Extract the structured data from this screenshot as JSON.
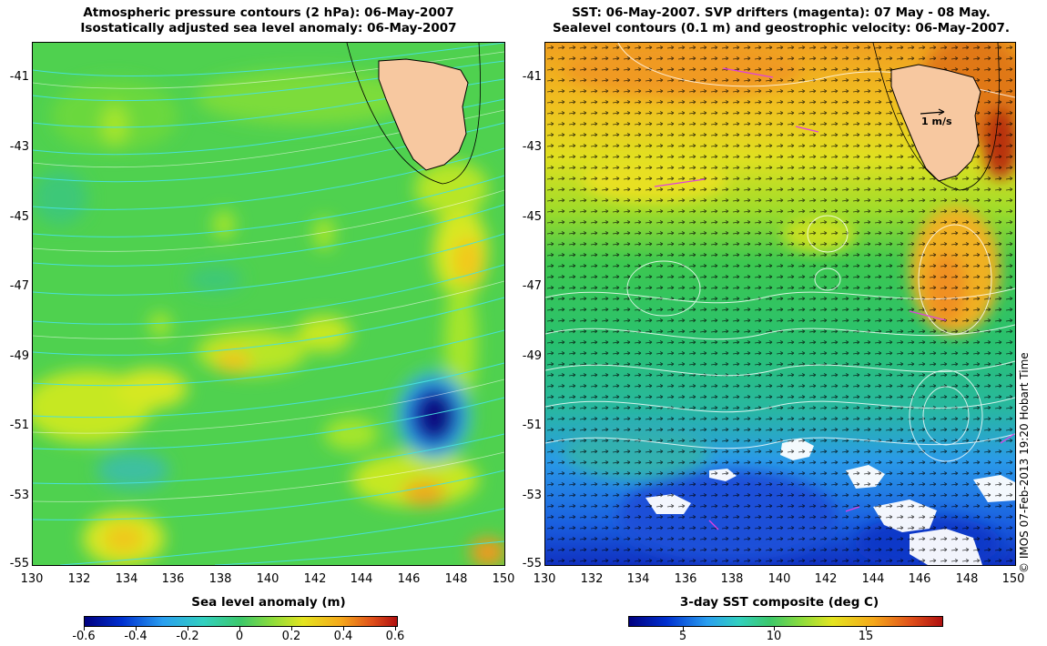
{
  "left_panel": {
    "title_line1": "Atmospheric pressure contours (2 hPa): 06-May-2007",
    "title_line2": "Isostatically adjusted sea level anomaly: 06-May-2007",
    "colorbar_label": "Sea level anomaly (m)",
    "colorbar_ticks": [
      "-0.6",
      "-0.4",
      "-0.2",
      "0",
      "0.2",
      "0.4",
      "0.6"
    ]
  },
  "right_panel": {
    "title_line1": "SST: 06-May-2007. SVP drifters (magenta): 07 May - 08 May.",
    "title_line2": "Sealevel contours (0.1 m) and geostrophic velocity: 06-May-2007.",
    "colorbar_label": "3-day SST composite (deg C)",
    "colorbar_ticks": [
      "5",
      "10",
      "15"
    ],
    "velocity_scale_label": "1 m/s"
  },
  "axes": {
    "lat_ticks": [
      "-41",
      "-43",
      "-45",
      "-47",
      "-49",
      "-51",
      "-53",
      "-55"
    ],
    "lon_ticks": [
      "130",
      "132",
      "134",
      "136",
      "138",
      "140",
      "142",
      "144",
      "146",
      "148",
      "150"
    ],
    "lon_range": [
      130,
      150
    ],
    "lat_range": [
      -55,
      -40
    ]
  },
  "copyright": "© IMOS 07-Feb-2013 19:20 Hobart Time",
  "colors": {
    "land": "#f7c8a0",
    "drifter": "#e040e0",
    "pressure_contour": "#40e0e0"
  }
}
